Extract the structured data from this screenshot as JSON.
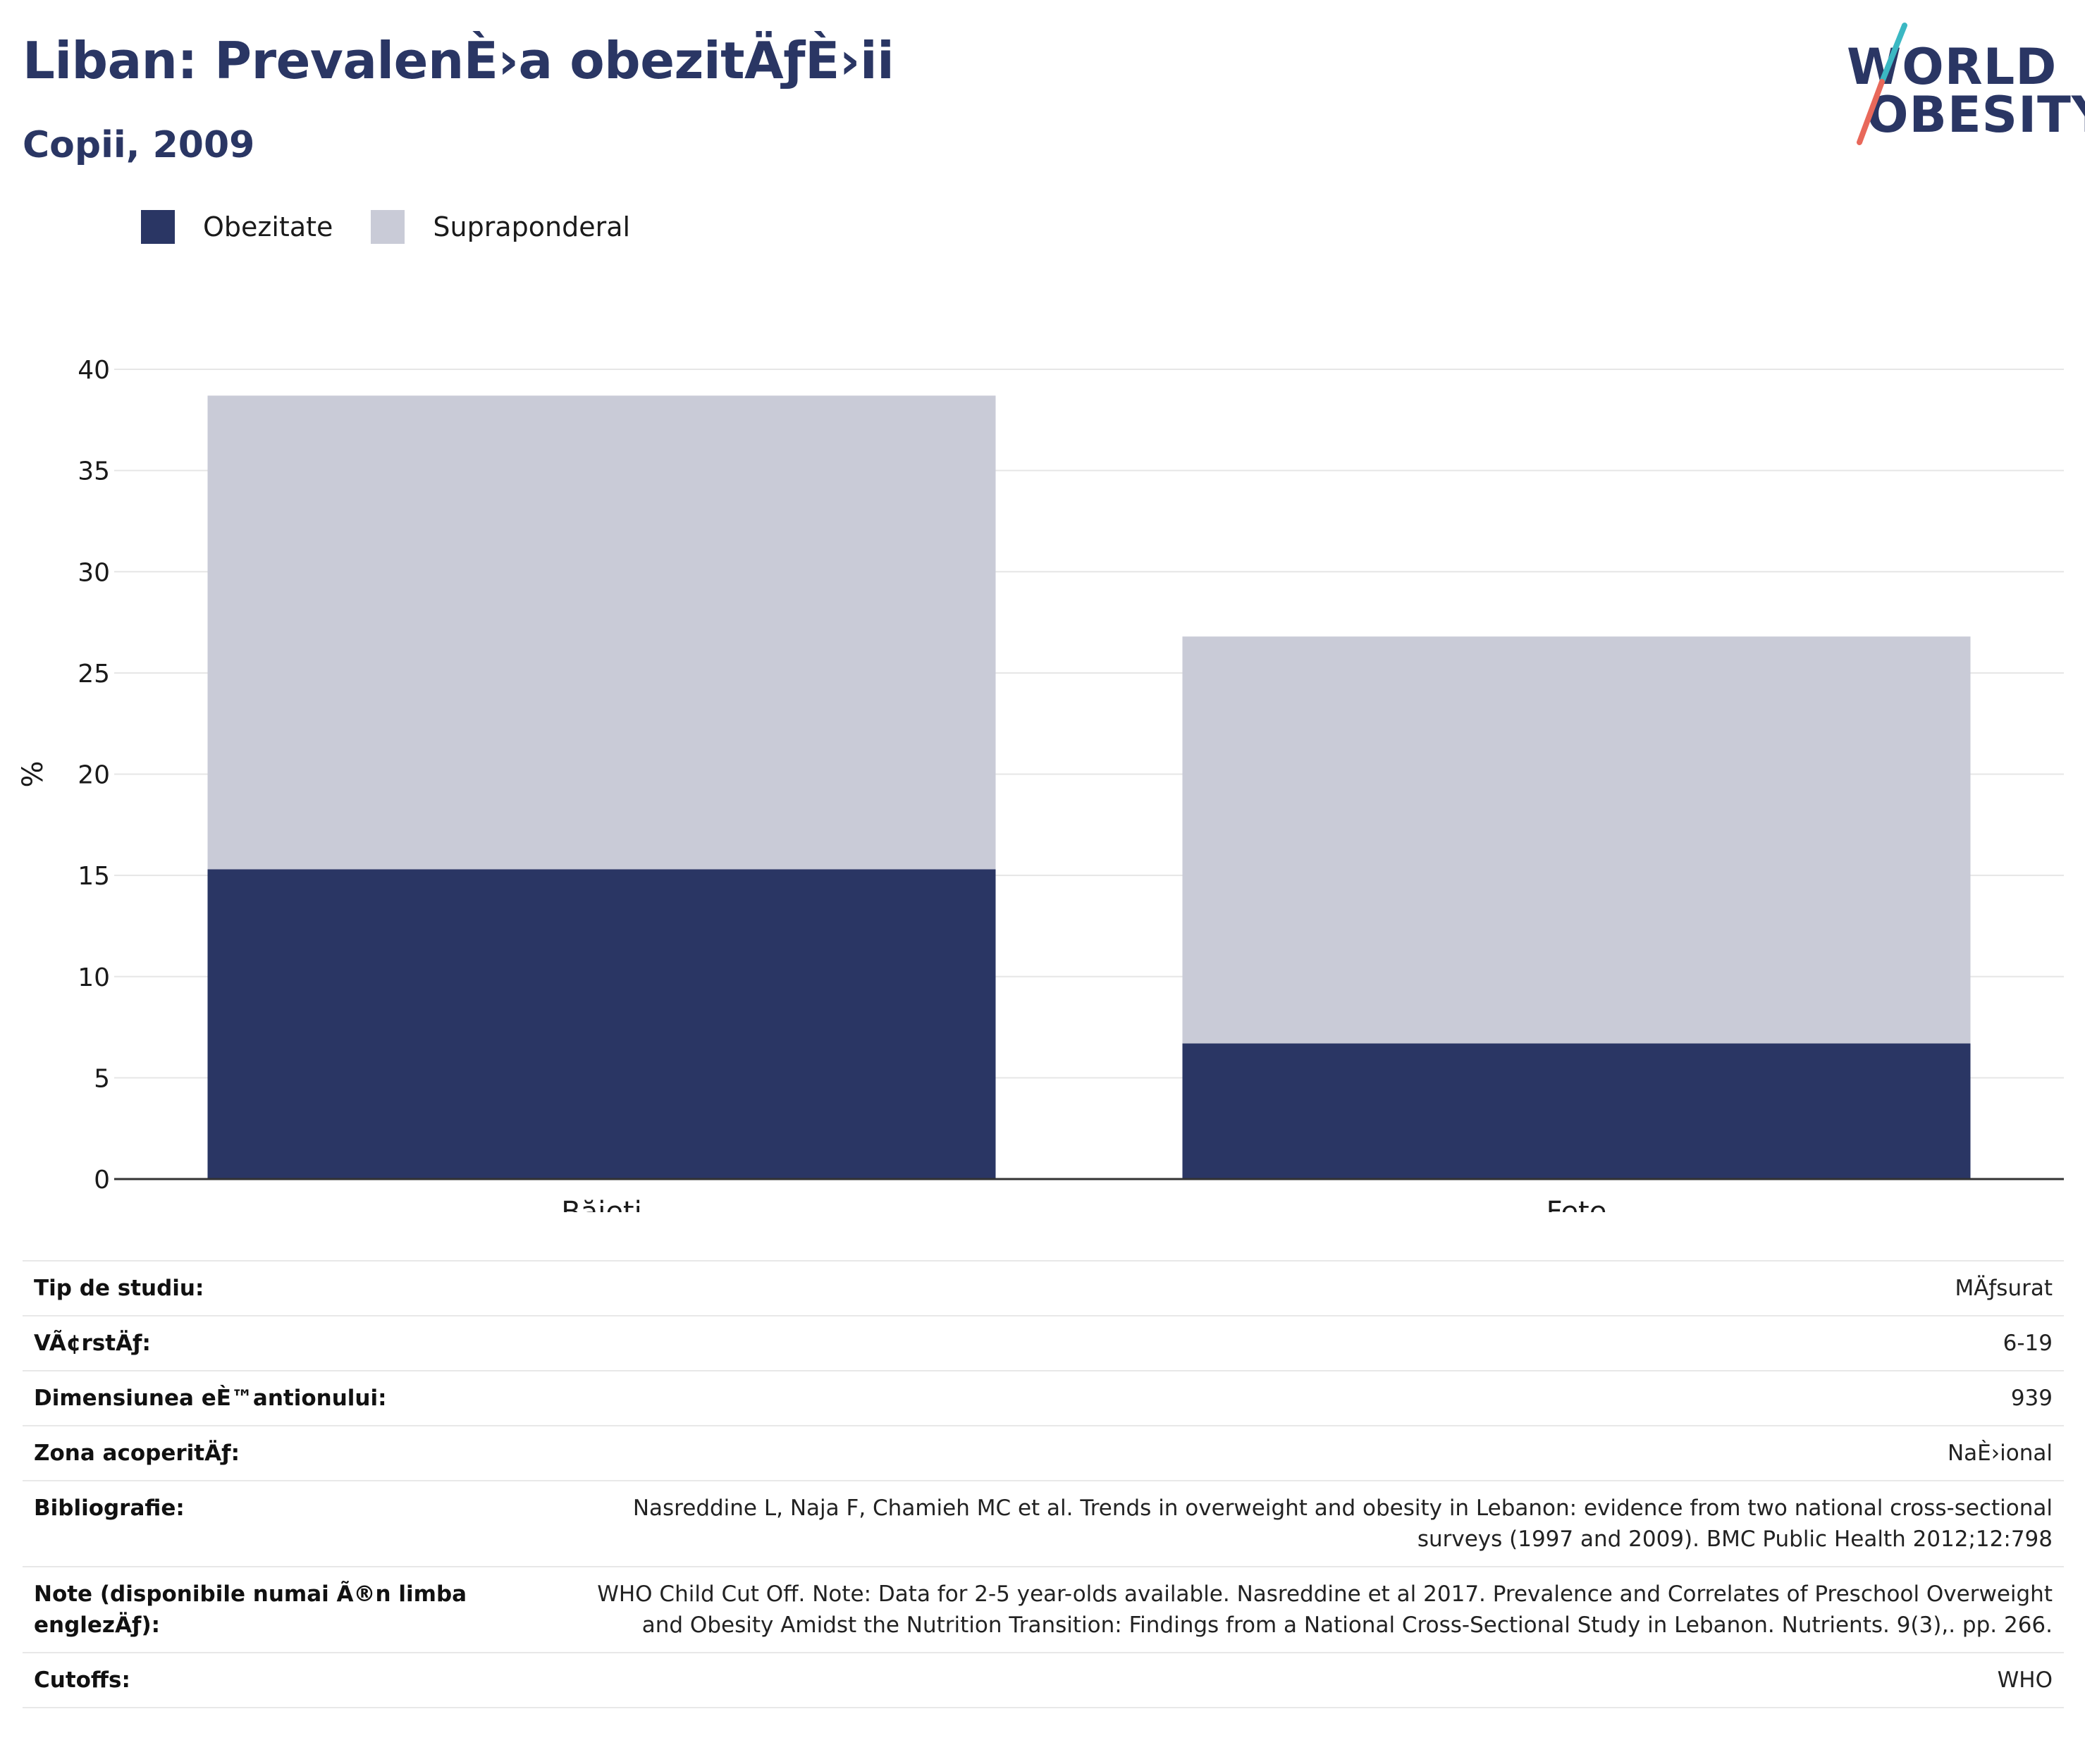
{
  "header": {
    "title": "Liban: PrevalenÈ›a obezitÄƒÈ›ii",
    "subtitle": "Copii, 2009"
  },
  "logo": {
    "line1": "WORLD",
    "line2": "OBESITY",
    "colors": {
      "text": "#2a3664",
      "slash_top": "#3bb8c3",
      "slash_bottom": "#e8685a"
    }
  },
  "legend": [
    {
      "label": "Obezitate",
      "color": "#2a3664"
    },
    {
      "label": "Supraponderal",
      "color": "#c9cbd7"
    }
  ],
  "chart_data": {
    "type": "bar",
    "stacked": true,
    "categories": [
      "Băieți",
      "Fete"
    ],
    "series": [
      {
        "name": "Obezitate",
        "values": [
          15.3,
          6.7
        ],
        "color": "#2a3664"
      },
      {
        "name": "Supraponderal",
        "values": [
          23.4,
          20.1
        ],
        "color": "#c9cbd7"
      }
    ],
    "ylabel": "%",
    "ylim": [
      0,
      40
    ],
    "yticks": [
      0,
      5,
      10,
      15,
      20,
      25,
      30,
      35,
      40
    ],
    "grid": true,
    "legend_position": "top-left"
  },
  "info": {
    "rows": [
      {
        "key": "Tip de studiu:",
        "value": "MÄƒsurat"
      },
      {
        "key": "VÃ¢rstÄƒ:",
        "value": "6-19"
      },
      {
        "key": "Dimensiunea eÈ™antionului:",
        "value": "939"
      },
      {
        "key": "Zona acoperitÄƒ:",
        "value": "NaÈ›ional"
      },
      {
        "key": "Bibliografie:",
        "value": "Nasreddine L, Naja F, Chamieh MC et al. Trends in overweight and obesity in Lebanon: evidence from two national cross-sectional surveys (1997 and 2009). BMC Public Health 2012;12:798"
      },
      {
        "key": "Note (disponibile numai Ã®n limba englezÄƒ):",
        "value": "WHO Child Cut Off. Note: Data for 2-5 year-olds available. Nasreddine et al 2017. Prevalence and Correlates of Preschool Overweight and Obesity Amidst the Nutrition Transition: Findings from a National Cross-Sectional Study in Lebanon. Nutrients. 9(3),. pp. 266."
      },
      {
        "key": "Cutoffs:",
        "value": "WHO"
      }
    ]
  }
}
